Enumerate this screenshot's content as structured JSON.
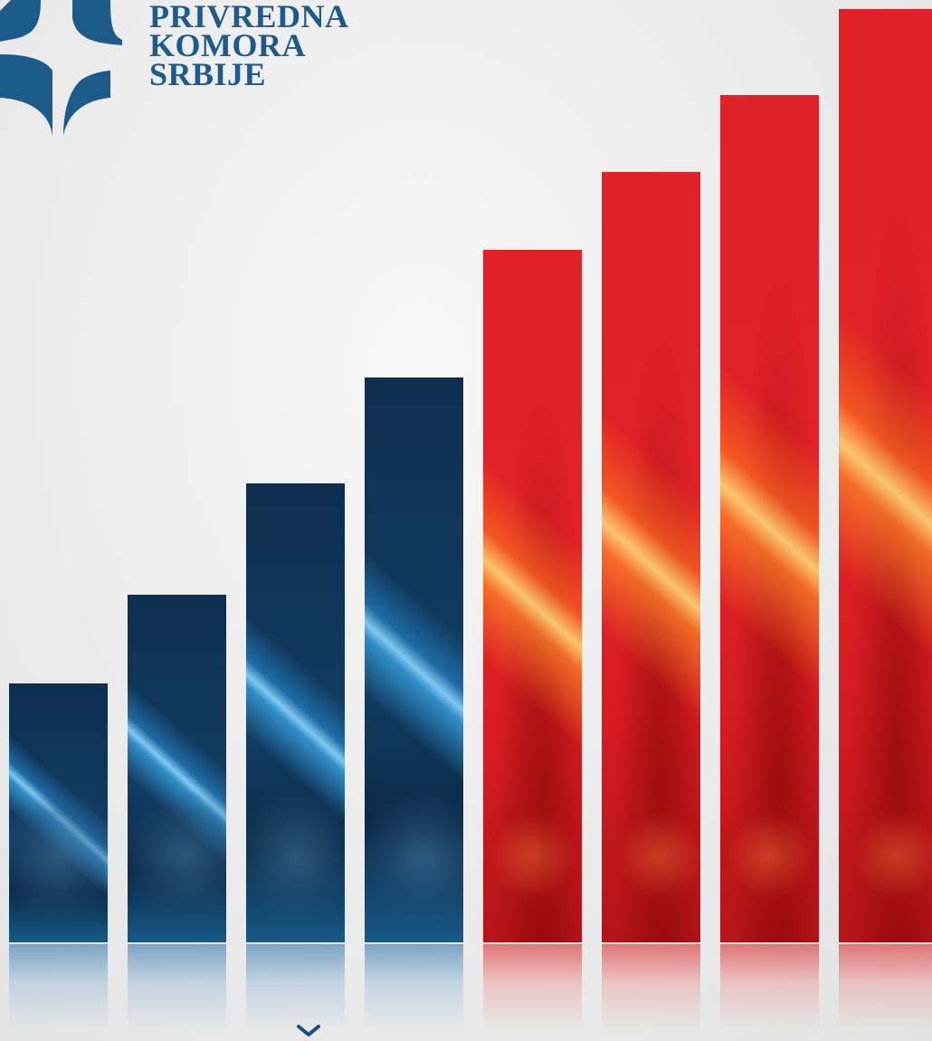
{
  "logo": {
    "line1": "PRIVREDNA",
    "line2": "KOMORA",
    "line3": "SRBIJE",
    "color": "#1d5b8a"
  },
  "chart_data": {
    "type": "bar",
    "categories": [
      "",
      "",
      "",
      "",
      "",
      "",
      "",
      ""
    ],
    "values": [
      1.0,
      1.34,
      1.77,
      2.18,
      2.67,
      2.97,
      3.27,
      3.6
    ],
    "colors": [
      "#0e2f4f",
      "#0e2f4f",
      "#0e2f4f",
      "#0e2f4f",
      "#e02127",
      "#e02127",
      "#e02127",
      "#e02127"
    ],
    "ylim": [
      0,
      3.6
    ],
    "grid": false,
    "title": "",
    "xlabel": "",
    "ylabel": ""
  },
  "icons": {
    "scroll": "chevron-down-icon"
  }
}
